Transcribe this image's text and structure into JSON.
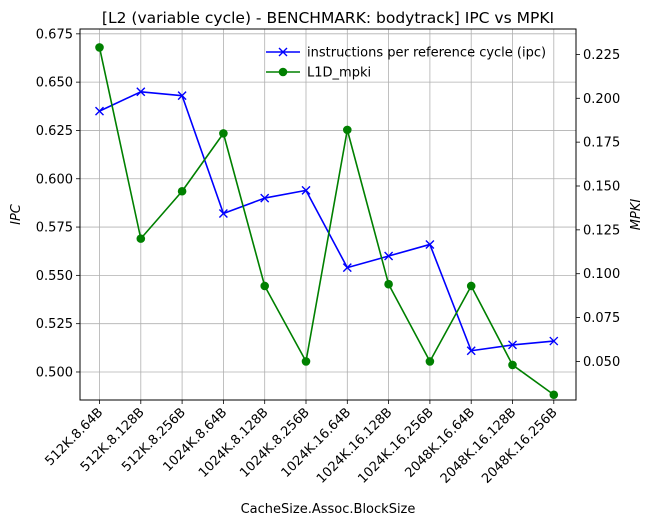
{
  "chart_data": {
    "type": "line",
    "title": "[L2 (variable cycle) - BENCHMARK: bodytrack]  IPC vs MPKI",
    "xlabel": "CacheSize.Assoc.BlockSize",
    "ylabel_left": "IPC",
    "ylabel_right": "MPKI",
    "categories": [
      "512K.8.64B",
      "512K.8.128B",
      "512K.8.256B",
      "1024K.8.64B",
      "1024K.8.128B",
      "1024K.8.256B",
      "1024K.16.64B",
      "1024K.16.128B",
      "1024K.16.256B",
      "2048K.16.64B",
      "2048K.16.128B",
      "2048K.16.256B"
    ],
    "ylim_left": [
      0.4855,
      0.6775
    ],
    "ylim_right": [
      0.028,
      0.2395
    ],
    "yticks_left": [
      "0.500",
      "0.525",
      "0.550",
      "0.575",
      "0.600",
      "0.625",
      "0.650",
      "0.675"
    ],
    "yticks_right": [
      "0.050",
      "0.075",
      "0.100",
      "0.125",
      "0.150",
      "0.175",
      "0.200",
      "0.225"
    ],
    "grid": true,
    "legend_position": "top-right",
    "series": [
      {
        "name": "instructions per reference cycle (ipc)",
        "axis": "left",
        "color": "#0000ff",
        "marker": "x",
        "values": [
          0.635,
          0.645,
          0.643,
          0.582,
          0.59,
          0.594,
          0.554,
          0.56,
          0.566,
          0.511,
          0.514,
          0.516
        ]
      },
      {
        "name": "L1D_mpki",
        "axis": "right",
        "color": "#008000",
        "marker": "circle",
        "values": [
          0.229,
          0.12,
          0.147,
          0.18,
          0.093,
          0.05,
          0.182,
          0.094,
          0.05,
          0.093,
          0.048,
          0.031
        ]
      }
    ]
  }
}
